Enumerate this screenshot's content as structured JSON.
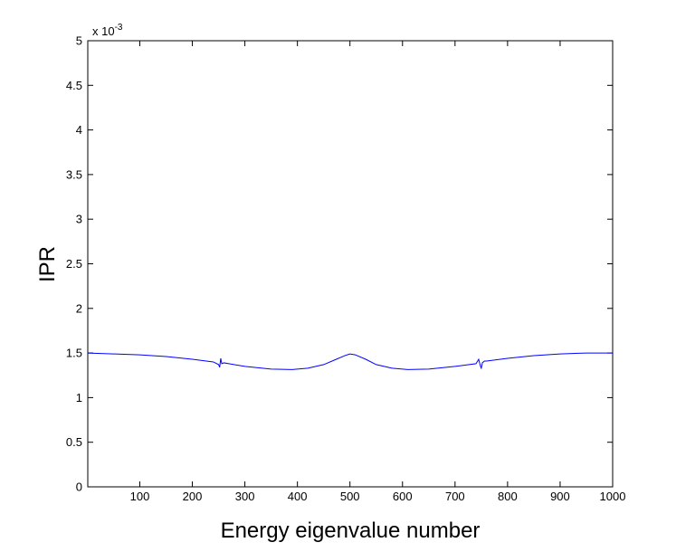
{
  "chart_data": {
    "type": "line",
    "title": "",
    "xlabel": "Energy eigenvalue number",
    "ylabel": "IPR",
    "xlim": [
      1,
      1000
    ],
    "ylim": [
      0,
      5
    ],
    "y_exponent_label": "x 10",
    "y_exponent_power": "-3",
    "x_ticks": [
      100,
      200,
      300,
      400,
      500,
      600,
      700,
      800,
      900,
      1000
    ],
    "x_tick_labels": [
      "100",
      "200",
      "300",
      "400",
      "500",
      "600",
      "700",
      "800",
      "900",
      "1000"
    ],
    "y_ticks": [
      0,
      0.5,
      1,
      1.5,
      2,
      2.5,
      3,
      3.5,
      4,
      4.5,
      5
    ],
    "y_tick_labels": [
      "0",
      "0.5",
      "1",
      "1.5",
      "2",
      "2.5",
      "3",
      "3.5",
      "4",
      "4.5",
      "5"
    ],
    "grid": false,
    "line_color": "#0000ff",
    "series": [
      {
        "x": [
          1,
          50,
          100,
          150,
          200,
          240,
          250,
          252,
          254,
          256,
          260,
          300,
          350,
          390,
          420,
          450,
          470,
          490,
          500,
          510,
          530,
          550,
          580,
          610,
          650,
          700,
          740,
          745,
          748,
          750,
          752,
          756,
          760,
          800,
          850,
          900,
          950,
          1000
        ],
        "values": [
          1.5,
          1.49,
          1.48,
          1.46,
          1.43,
          1.4,
          1.37,
          1.34,
          1.44,
          1.38,
          1.39,
          1.35,
          1.32,
          1.315,
          1.33,
          1.37,
          1.42,
          1.47,
          1.49,
          1.48,
          1.43,
          1.37,
          1.33,
          1.315,
          1.32,
          1.35,
          1.38,
          1.43,
          1.36,
          1.33,
          1.39,
          1.41,
          1.41,
          1.44,
          1.47,
          1.49,
          1.5,
          1.5
        ]
      }
    ]
  }
}
